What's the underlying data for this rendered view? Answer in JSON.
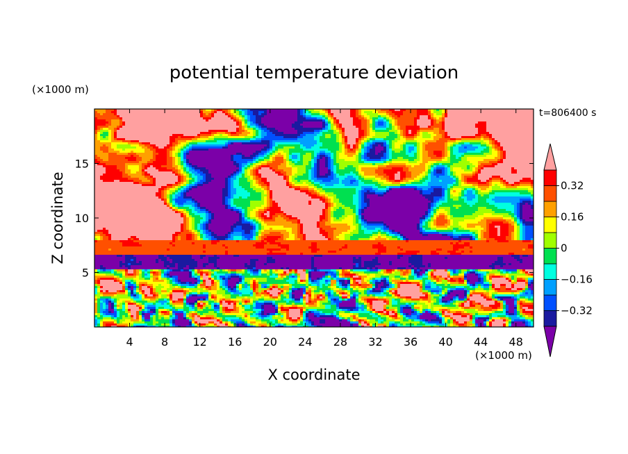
{
  "chart_data": {
    "type": "heatmap",
    "title": "potential temperature deviation",
    "xlabel": "X coordinate",
    "ylabel": "Z coordinate",
    "x_unit": "(×1000 m)",
    "y_unit": "(×1000 m)",
    "time_label": "t=806400 s",
    "xlim": [
      0,
      50
    ],
    "ylim": [
      0,
      20
    ],
    "x_ticks": [
      4,
      8,
      12,
      16,
      20,
      24,
      28,
      32,
      36,
      40,
      44,
      48
    ],
    "y_ticks": [
      5,
      10,
      15
    ],
    "colorbar": {
      "levels": [
        -0.4,
        -0.32,
        -0.24,
        -0.16,
        -0.08,
        0,
        0.08,
        0.16,
        0.24,
        0.32,
        0.4
      ],
      "labels": [
        "0.32",
        "0.16",
        "0",
        "-0.16",
        "-0.32"
      ],
      "label_values": [
        0.32,
        0.16,
        0,
        -0.16,
        -0.32
      ],
      "colors_low_to_high": [
        "#7b00a8",
        "#1a1aa0",
        "#0050ff",
        "#00a0ff",
        "#00ffe0",
        "#00e050",
        "#a0ff00",
        "#ffff00",
        "#ffa000",
        "#ff5000",
        "#ff0000",
        "#ffa0a0"
      ],
      "extend": "both"
    },
    "features": [
      {
        "region": "upper layer (z 10-20)",
        "values": "alternating patches of deviation <= -0.4 (purple) and >= 0.4 (pink)"
      },
      {
        "region": "band near z 7.3",
        "values": "about 0.3 to 0.4 (orange/red stripe)"
      },
      {
        "region": "lower layer (z 0-5)",
        "values": "turbulent mix spanning -0.4 to 0.4"
      }
    ]
  }
}
